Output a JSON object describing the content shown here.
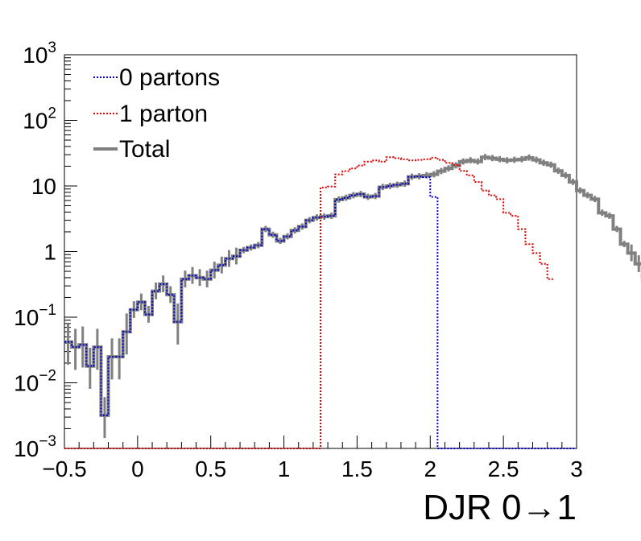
{
  "chart_data": {
    "type": "line",
    "xlabel": "DJR 0→1",
    "ylabel": "",
    "xlim": [
      -0.5,
      3.0
    ],
    "ylim": [
      0.001,
      1000
    ],
    "y_scale": "log",
    "x_ticks": [
      "−0.5",
      "0",
      "0.5",
      "1",
      "1.5",
      "2",
      "2.5",
      "3"
    ],
    "y_ticks": [
      {
        "base": "10",
        "exp": "3"
      },
      {
        "base": "10",
        "exp": "2"
      },
      {
        "base": "10",
        "exp": ""
      },
      {
        "base": "1",
        "exp": ""
      },
      {
        "base": "10",
        "exp": "−1"
      },
      {
        "base": "10",
        "exp": "−2"
      },
      {
        "base": "10",
        "exp": "−3"
      }
    ],
    "legend_position": "top-left",
    "bin_width": 0.05,
    "series": [
      {
        "name": "0 partons",
        "color": "#0000cc",
        "style": "dotted",
        "x_start": -0.5,
        "values": [
          0.042,
          0.035,
          0.038,
          0.018,
          0.035,
          0.0032,
          0.025,
          0.025,
          0.06,
          0.13,
          0.17,
          0.11,
          0.25,
          0.32,
          0.22,
          0.085,
          0.38,
          0.43,
          0.4,
          0.38,
          0.52,
          0.62,
          0.78,
          0.85,
          1.05,
          1.15,
          1.25,
          2.2,
          1.8,
          1.45,
          1.7,
          2.1,
          2.4,
          3.0,
          3.3,
          3.4,
          3.5,
          6.2,
          6.6,
          7.2,
          7.5,
          6.8,
          7.0,
          9.6,
          10.0,
          10.4,
          10.8,
          13.8,
          14.0,
          13.6,
          6.8
        ],
        "tail_after_cutoff": 0.001
      },
      {
        "name": "1 parton",
        "color": "#dd0000",
        "style": "dotted",
        "x_start": 1.25,
        "values": [
          9.5,
          9.8,
          15.0,
          16.8,
          18.5,
          20.5,
          23.5,
          24.5,
          23.5,
          27.5,
          26.5,
          25.5,
          24.5,
          25.0,
          25.5,
          27.0,
          25.0,
          22.5,
          21.0,
          17.0,
          14.5,
          11.5,
          8.5,
          7.2,
          6.3,
          3.9,
          3.5,
          2.2,
          1.3,
          0.95,
          0.65,
          0.38
        ],
        "before_start": 0.001
      },
      {
        "name": "Total",
        "color": "#808080",
        "style": "solid",
        "x_start": -0.5,
        "values": [
          0.042,
          0.035,
          0.038,
          0.018,
          0.035,
          0.0032,
          0.025,
          0.025,
          0.06,
          0.13,
          0.17,
          0.11,
          0.25,
          0.32,
          0.22,
          0.085,
          0.38,
          0.43,
          0.4,
          0.38,
          0.52,
          0.62,
          0.78,
          0.85,
          1.05,
          1.15,
          1.25,
          2.2,
          1.8,
          1.45,
          1.7,
          2.1,
          2.4,
          3.0,
          3.3,
          3.4,
          3.5,
          6.2,
          6.6,
          7.2,
          7.5,
          6.8,
          7.0,
          9.6,
          10.0,
          10.4,
          10.8,
          13.8,
          14.0,
          14.5,
          15.0,
          16.8,
          18.5,
          20.5,
          23.5,
          24.5,
          23.5,
          27.5,
          26.5,
          25.5,
          24.5,
          25.0,
          25.5,
          27.0,
          25.0,
          22.5,
          21.0,
          17.0,
          14.5,
          11.5,
          8.5,
          7.2,
          6.3,
          3.9,
          3.5,
          2.2,
          1.3,
          0.95,
          0.65,
          0.38
        ]
      }
    ]
  }
}
